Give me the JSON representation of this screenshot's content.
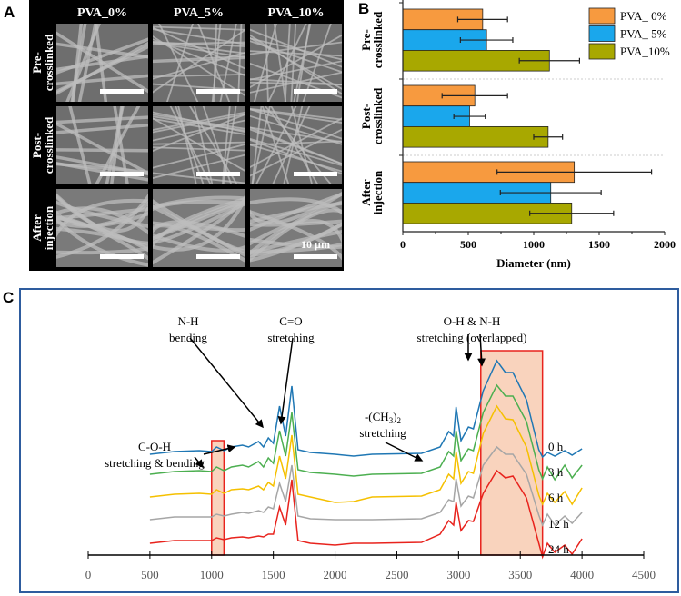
{
  "panel_a": {
    "label": "A",
    "columns": [
      "PVA_0%",
      "PVA_5%",
      "PVA_10%"
    ],
    "rows": [
      [
        "Pre-",
        "crosslinked"
      ],
      [
        "Post-",
        "crosslinked"
      ],
      [
        "After",
        "injection"
      ]
    ],
    "scale_bar_label": "10 µm",
    "colors": {
      "background": "#000000",
      "sem": "#6e6e6e",
      "fiber": "#bdbdbd"
    }
  },
  "chart_data": [
    {
      "panel": "B",
      "type": "bar",
      "orientation": "horizontal",
      "categories": [
        [
          "Pre-",
          "crosslinked"
        ],
        [
          "Post-",
          "crosslinked"
        ],
        [
          "After",
          "injection"
        ]
      ],
      "series": [
        {
          "name": "PVA_ 0%",
          "color": "#f79a3f",
          "values": [
            610,
            550,
            1310
          ],
          "errors": [
            190,
            250,
            590
          ]
        },
        {
          "name": "PVA_ 5%",
          "color": "#1aa7ec",
          "values": [
            640,
            510,
            1130
          ],
          "errors": [
            200,
            120,
            385
          ]
        },
        {
          "name": "PVA_10%",
          "color": "#a8a800",
          "values": [
            1120,
            1110,
            1290
          ],
          "errors": [
            230,
            110,
            320
          ]
        }
      ],
      "xlabel": "Diameter (nm)",
      "xlim": [
        0,
        2000
      ],
      "xticks": [
        "0",
        "500",
        "1000",
        "1500",
        "2000"
      ],
      "legend": "top-right",
      "grid": false
    },
    {
      "panel": "C",
      "type": "line",
      "x": [
        500,
        700,
        900,
        1000,
        1040,
        1100,
        1160,
        1250,
        1300,
        1380,
        1420,
        1460,
        1500,
        1550,
        1600,
        1650,
        1700,
        1800,
        2000,
        2150,
        2300,
        2700,
        2850,
        2920,
        2960,
        2980,
        3020,
        3080,
        3120,
        3200,
        3310,
        3380,
        3440,
        3550,
        3650,
        3680,
        3720,
        3780,
        3860,
        3920,
        4000
      ],
      "series": [
        {
          "name": "0 h",
          "color": "#1f77b4",
          "values": [
            0,
            3,
            4,
            3,
            8,
            4,
            8,
            10,
            8,
            14,
            8,
            18,
            12,
            53,
            20,
            75,
            5,
            2,
            0,
            -2,
            0,
            1,
            8,
            25,
            20,
            52,
            15,
            30,
            28,
            70,
            103,
            90,
            90,
            60,
            5,
            -3,
            2,
            -2,
            4,
            -1,
            6
          ]
        },
        {
          "name": "3 h",
          "color": "#4caf50",
          "values": [
            0,
            3,
            4,
            3,
            8,
            4,
            8,
            10,
            8,
            14,
            8,
            18,
            12,
            48,
            20,
            68,
            5,
            2,
            0,
            -2,
            0,
            1,
            8,
            25,
            20,
            48,
            15,
            28,
            26,
            68,
            98,
            86,
            86,
            58,
            5,
            -5,
            8,
            -6,
            10,
            -4,
            10
          ]
        },
        {
          "name": "6 h",
          "color": "#f5c000",
          "values": [
            0,
            3,
            4,
            3,
            8,
            4,
            8,
            9,
            8,
            12,
            8,
            16,
            12,
            45,
            20,
            68,
            3,
            0,
            -6,
            -5,
            0,
            1,
            8,
            25,
            20,
            50,
            15,
            28,
            26,
            70,
            100,
            86,
            85,
            55,
            2,
            -8,
            4,
            -6,
            6,
            -8,
            10
          ]
        },
        {
          "name": "12 h",
          "color": "#a6a6a6",
          "values": [
            0,
            3,
            3,
            3,
            6,
            4,
            6,
            8,
            7,
            10,
            8,
            14,
            12,
            40,
            20,
            60,
            4,
            1,
            0,
            0,
            0,
            1,
            8,
            22,
            20,
            45,
            15,
            26,
            24,
            60,
            80,
            72,
            72,
            50,
            5,
            -6,
            6,
            -6,
            4,
            -4,
            8
          ]
        },
        {
          "name": "24 h",
          "color": "#e8231d",
          "values": [
            0,
            3,
            3,
            3,
            6,
            4,
            6,
            7,
            6,
            8,
            7,
            10,
            10,
            40,
            20,
            70,
            3,
            0,
            -2,
            0,
            0,
            1,
            10,
            25,
            20,
            45,
            14,
            25,
            24,
            55,
            80,
            72,
            74,
            50,
            0,
            -15,
            0,
            -10,
            -2,
            -12,
            5
          ]
        }
      ],
      "xlim": [
        0,
        4500
      ],
      "xticks": [
        "0",
        "500",
        "1000",
        "1500",
        "2000",
        "2500",
        "3000",
        "3500",
        "4000",
        "4500"
      ],
      "highlight_ranges": [
        [
          1000,
          1100
        ],
        [
          3180,
          3680
        ]
      ],
      "highlight_color": "#f9d3bd",
      "annotations": [
        {
          "lines": [
            "N-H",
            "bending"
          ]
        },
        {
          "lines": [
            "C=O",
            "stretching"
          ]
        },
        {
          "lines": [
            "O-H & N-H",
            "stretching (overlapped)"
          ]
        },
        {
          "lines": [
            "-(CH",
            "3",
            ")",
            "2",
            "stretching"
          ]
        },
        {
          "lines": [
            "C-O-H",
            "stretching & bending"
          ]
        }
      ],
      "frame_color": "#2e5c9e"
    }
  ],
  "panel_b_label": "B",
  "panel_c_label": "C"
}
